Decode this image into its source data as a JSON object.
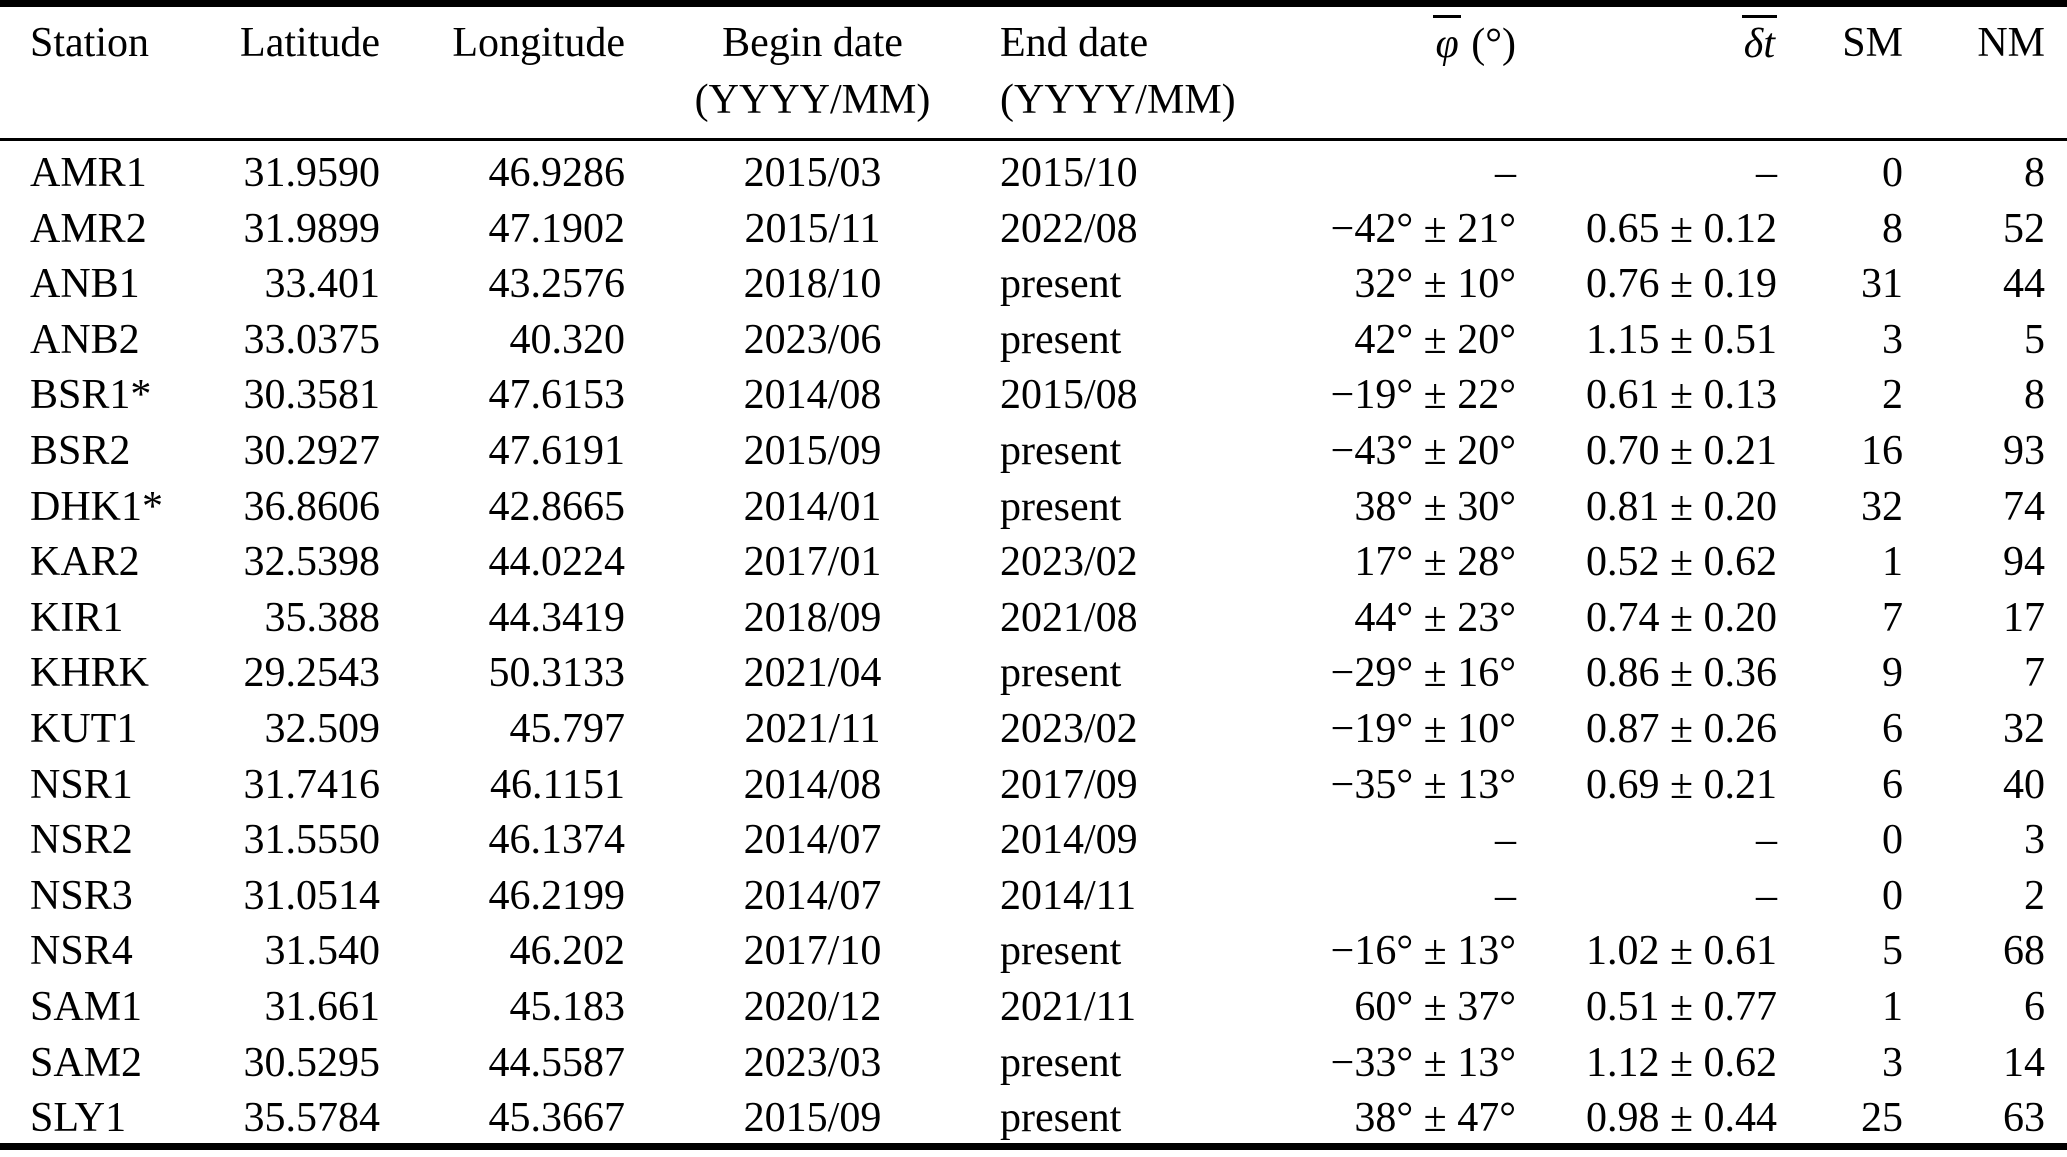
{
  "table": {
    "columns": [
      {
        "id": "station",
        "label": "Station",
        "align": "left"
      },
      {
        "id": "latitude",
        "label": "Latitude",
        "align": "right"
      },
      {
        "id": "longitude",
        "label": "Longitude",
        "align": "right"
      },
      {
        "id": "begin-date",
        "label": "Begin date",
        "sub": "(YYYY/MM)",
        "align": "center"
      },
      {
        "id": "end-date",
        "label": "End date",
        "sub": "(YYYY/MM)",
        "align": "left"
      },
      {
        "id": "phi-mean",
        "over": "φ",
        "after": " (°)",
        "align": "right"
      },
      {
        "id": "delta-t-mean",
        "over": "δt",
        "after": "",
        "align": "right"
      },
      {
        "id": "sm",
        "label": "SM",
        "align": "right"
      },
      {
        "id": "nm",
        "label": "NM",
        "align": "right"
      }
    ],
    "rows": [
      [
        "AMR1",
        "31.9590",
        "46.9286",
        "2015/03",
        "2015/10",
        "–",
        "–",
        "0",
        "8"
      ],
      [
        "AMR2",
        "31.9899",
        "47.1902",
        "2015/11",
        "2022/08",
        "−42° ± 21°",
        "0.65 ± 0.12",
        "8",
        "52"
      ],
      [
        "ANB1",
        "33.401",
        "43.2576",
        "2018/10",
        "present",
        "32° ± 10°",
        "0.76 ± 0.19",
        "31",
        "44"
      ],
      [
        "ANB2",
        "33.0375",
        "40.320",
        "2023/06",
        "present",
        "42° ± 20°",
        "1.15 ± 0.51",
        "3",
        "5"
      ],
      [
        "BSR1*",
        "30.3581",
        "47.6153",
        "2014/08",
        "2015/08",
        "−19° ± 22°",
        "0.61 ± 0.13",
        "2",
        "8"
      ],
      [
        "BSR2",
        "30.2927",
        "47.6191",
        "2015/09",
        "present",
        "−43° ± 20°",
        "0.70 ± 0.21",
        "16",
        "93"
      ],
      [
        "DHK1*",
        "36.8606",
        "42.8665",
        "2014/01",
        "present",
        "38° ± 30°",
        "0.81 ± 0.20",
        "32",
        "74"
      ],
      [
        "KAR2",
        "32.5398",
        "44.0224",
        "2017/01",
        "2023/02",
        "17° ± 28°",
        "0.52 ± 0.62",
        "1",
        "94"
      ],
      [
        "KIR1",
        "35.388",
        "44.3419",
        "2018/09",
        "2021/08",
        "44° ± 23°",
        "0.74 ± 0.20",
        "7",
        "17"
      ],
      [
        "KHRK",
        "29.2543",
        "50.3133",
        "2021/04",
        "present",
        "−29° ± 16°",
        "0.86 ± 0.36",
        "9",
        "7"
      ],
      [
        "KUT1",
        "32.509",
        "45.797",
        "2021/11",
        "2023/02",
        "−19° ± 10°",
        "0.87 ± 0.26",
        "6",
        "32"
      ],
      [
        "NSR1",
        "31.7416",
        "46.1151",
        "2014/08",
        "2017/09",
        "−35° ± 13°",
        "0.69 ± 0.21",
        "6",
        "40"
      ],
      [
        "NSR2",
        "31.5550",
        "46.1374",
        "2014/07",
        "2014/09",
        "–",
        "–",
        "0",
        "3"
      ],
      [
        "NSR3",
        "31.0514",
        "46.2199",
        "2014/07",
        "2014/11",
        "–",
        "–",
        "0",
        "2"
      ],
      [
        "NSR4",
        "31.540",
        "46.202",
        "2017/10",
        "present",
        "−16° ± 13°",
        "1.02 ± 0.61",
        "5",
        "68"
      ],
      [
        "SAM1",
        "31.661",
        "45.183",
        "2020/12",
        "2021/11",
        "60° ± 37°",
        "0.51 ± 0.77",
        "1",
        "6"
      ],
      [
        "SAM2",
        "30.5295",
        "44.5587",
        "2023/03",
        "present",
        "−33° ± 13°",
        "1.12 ± 0.62",
        "3",
        "14"
      ],
      [
        "SLY1",
        "35.5784",
        "45.3667",
        "2015/09",
        "present",
        "38° ± 47°",
        "0.98 ± 0.44",
        "25",
        "63"
      ]
    ]
  },
  "colors": {
    "text": "#000000",
    "background": "#ffffff",
    "rule": "#000000"
  }
}
